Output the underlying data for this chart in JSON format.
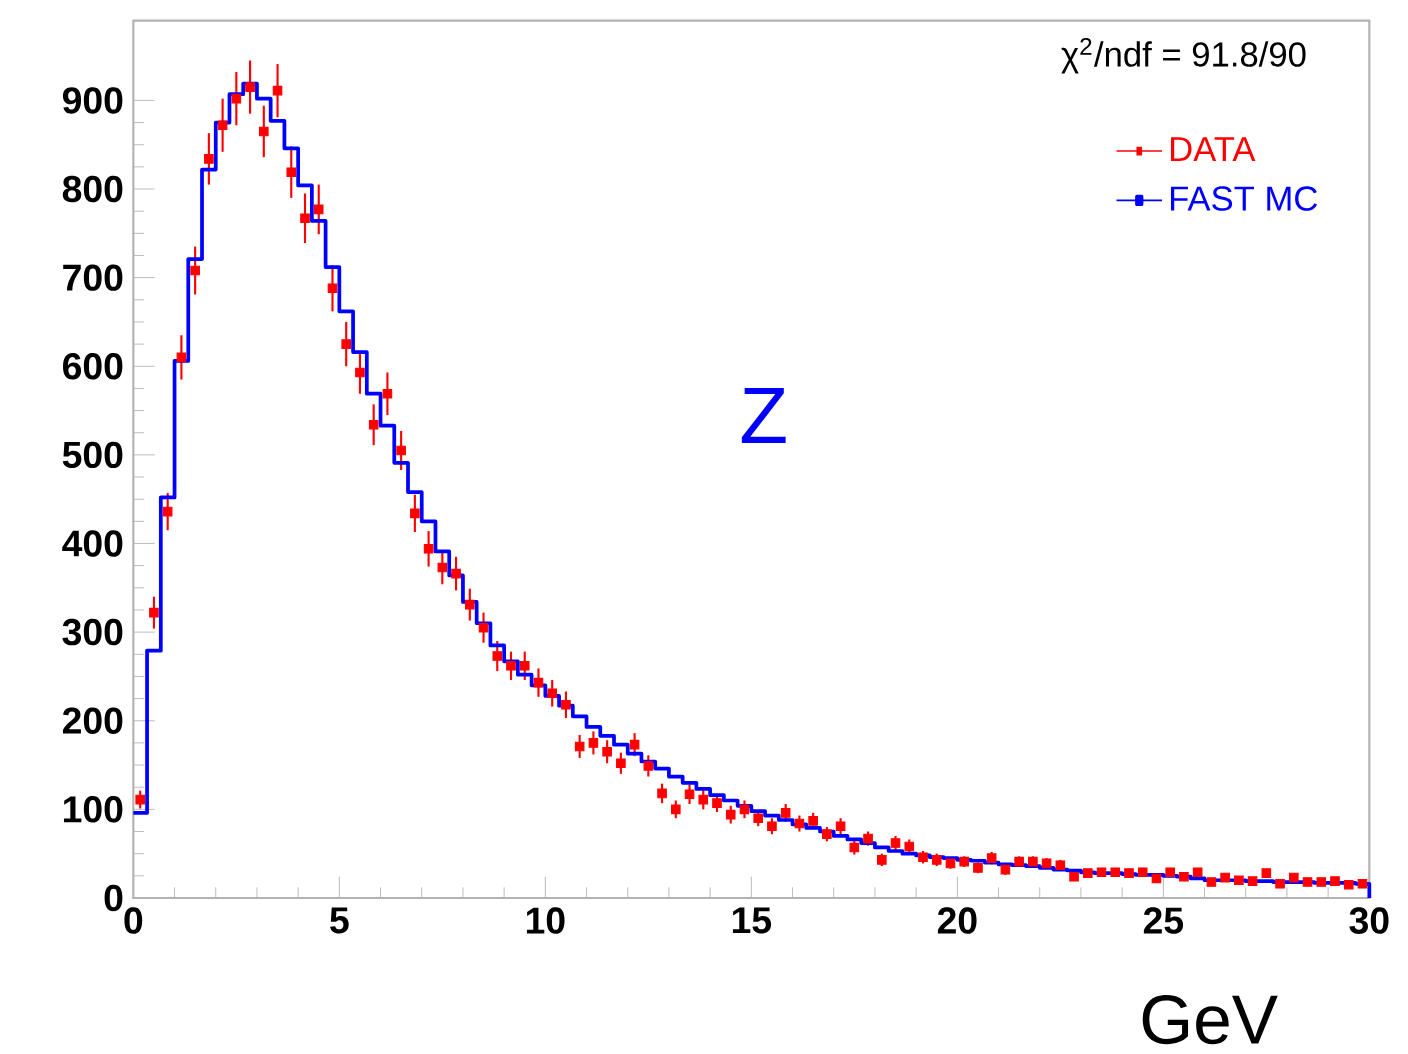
{
  "chart_data": {
    "type": "histogram",
    "xlabel": "GeV",
    "bins": [
      0,
      0.3333,
      0.6667,
      1,
      1.3333,
      1.6667,
      2,
      2.3333,
      2.6667,
      3,
      3.3333,
      3.6667,
      4,
      4.3333,
      4.6667,
      5,
      5.3333,
      5.6667,
      6,
      6.3333,
      6.6667,
      7,
      7.3333,
      7.6667,
      8,
      8.3333,
      8.6667,
      9,
      9.3333,
      9.6667,
      10,
      10.3333,
      10.6667,
      11,
      11.3333,
      11.6667,
      12,
      12.3333,
      12.6667,
      13,
      13.3333,
      13.6667,
      14,
      14.3333,
      14.6667,
      15,
      15.3333,
      15.6667,
      16,
      16.3333,
      16.6667,
      17,
      17.3333,
      17.6667,
      18,
      18.3333,
      18.6667,
      19,
      19.3333,
      19.6667,
      20,
      20.3333,
      20.6667,
      21,
      21.3333,
      21.6667,
      22,
      22.3333,
      22.6667,
      23,
      23.3333,
      23.6667,
      24,
      24.3333,
      24.6667,
      25,
      25.3333,
      25.6667,
      26,
      26.3333,
      26.6667,
      27,
      27.3333,
      27.6667,
      28,
      28.3333,
      28.6667,
      29,
      29.3333,
      29.6667,
      30
    ],
    "series": [
      {
        "name": "DATA",
        "type": "scatter",
        "marker": "square",
        "color": "#ff0000",
        "x": [
          0.1667,
          0.5,
          0.8333,
          1.1667,
          1.5,
          1.8333,
          2.1667,
          2.5,
          2.8333,
          3.1667,
          3.5,
          3.8333,
          4.1667,
          4.5,
          4.8333,
          5.1667,
          5.5,
          5.8333,
          6.1667,
          6.5,
          6.8333,
          7.1667,
          7.5,
          7.8333,
          8.1667,
          8.5,
          8.8333,
          9.1667,
          9.5,
          9.8333,
          10.1667,
          10.5,
          10.8333,
          11.1667,
          11.5,
          11.8333,
          12.1667,
          12.5,
          12.8333,
          13.1667,
          13.5,
          13.8333,
          14.1667,
          14.5,
          14.8333,
          15.1667,
          15.5,
          15.8333,
          16.1667,
          16.5,
          16.8333,
          17.1667,
          17.5,
          17.8333,
          18.1667,
          18.5,
          18.8333,
          19.1667,
          19.5,
          19.8333,
          20.1667,
          20.5,
          20.8333,
          21.1667,
          21.5,
          21.8333,
          22.1667,
          22.5,
          22.8333,
          23.1667,
          23.5,
          23.8333,
          24.1667,
          24.5,
          24.8333,
          25.1667,
          25.5,
          25.8333,
          26.1667,
          26.5,
          26.8333,
          27.1667,
          27.5,
          27.8333,
          28.1667,
          28.5,
          28.8333,
          29.1667,
          29.5,
          29.8333
        ],
        "values": [
          111,
          322,
          436,
          610,
          708,
          834,
          872,
          902,
          915,
          865,
          911,
          819,
          767,
          777,
          688,
          625,
          593,
          534,
          569,
          505,
          434,
          394,
          373,
          366,
          331,
          305,
          273,
          262,
          262,
          243,
          231,
          218,
          171,
          175,
          165,
          152,
          173,
          149,
          118,
          100,
          117,
          111,
          107,
          94,
          100,
          90,
          81,
          96,
          84,
          87,
          72,
          81,
          57,
          67,
          43,
          62,
          58,
          46,
          43,
          39,
          41,
          34,
          45,
          32,
          41,
          41,
          39,
          37,
          24,
          28,
          29,
          29,
          28,
          29,
          22,
          29,
          24,
          29,
          18,
          23,
          20,
          19,
          28,
          16,
          23,
          18,
          18,
          19,
          15,
          16
        ],
        "errors": [
          10,
          18,
          21,
          25,
          27,
          29,
          30,
          30,
          30,
          29,
          30,
          29,
          28,
          28,
          26,
          25,
          24,
          23,
          24,
          22,
          21,
          20,
          19,
          19,
          18,
          17,
          17,
          16,
          16,
          16,
          15,
          15,
          13,
          13,
          13,
          12,
          13,
          12,
          11,
          10,
          11,
          11,
          10,
          10,
          10,
          9,
          9,
          10,
          9,
          9,
          8,
          9,
          8,
          8,
          7,
          8,
          8,
          7,
          7,
          6,
          6,
          6,
          7,
          6,
          6,
          6,
          6,
          6,
          5,
          5,
          5,
          5,
          5,
          5,
          5,
          5,
          5,
          5,
          4,
          5,
          4,
          4,
          5,
          4,
          5,
          4,
          4,
          4,
          4,
          4
        ]
      },
      {
        "name": "FAST MC",
        "color": "#0000ff",
        "values": [
          96,
          279,
          452,
          606,
          721,
          822,
          875,
          907,
          919,
          902,
          877,
          846,
          804,
          764,
          712,
          662,
          616,
          569,
          533,
          491,
          458,
          425,
          391,
          364,
          334,
          310,
          285,
          267,
          252,
          240,
          228,
          217,
          205,
          193,
          183,
          173,
          163,
          154,
          146,
          137,
          130,
          123,
          116,
          110,
          104,
          98,
          93,
          88,
          83,
          79,
          75,
          70,
          66,
          62,
          57,
          53,
          50,
          48,
          46,
          45,
          43,
          42,
          40,
          38,
          37,
          36,
          34,
          32,
          31,
          29,
          28,
          28,
          27,
          26,
          26,
          25,
          24,
          22,
          20,
          20,
          20,
          19,
          19,
          18,
          18,
          18,
          17,
          17,
          17,
          16
        ]
      }
    ],
    "xlim": [
      0,
      30
    ],
    "ylim": [
      0,
      990
    ],
    "xticks": [
      0,
      5,
      10,
      15,
      20,
      25,
      30
    ],
    "yticks": [
      0,
      100,
      200,
      300,
      400,
      500,
      600,
      700,
      800,
      900
    ],
    "legend": "top right",
    "annotations": [
      "χ$^{2}$/ndf = 91.8/90",
      "Z"
    ]
  }
}
